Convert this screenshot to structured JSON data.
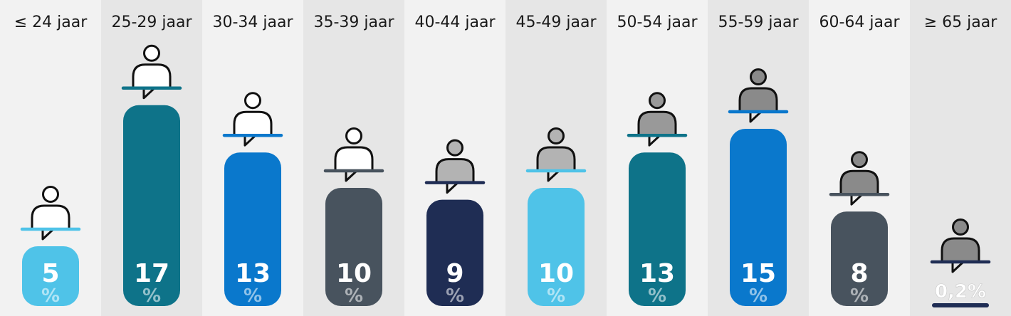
{
  "chart_data": {
    "type": "bar",
    "categories": [
      "≤ 24 jaar",
      "25-29 jaar",
      "30-34 jaar",
      "35-39 jaar",
      "40-44 jaar",
      "45-49 jaar",
      "50-54 jaar",
      "55-59 jaar",
      "60-64 jaar",
      "≥ 65 jaar"
    ],
    "values": [
      5,
      17,
      13,
      10,
      9,
      10,
      13,
      15,
      8,
      0.2
    ],
    "value_labels": [
      "5",
      "17",
      "13",
      "10",
      "9",
      "10",
      "13",
      "15",
      "8",
      "0,2"
    ],
    "unit": "%",
    "bar_colors": [
      "#4fc3e8",
      "#0e7389",
      "#0a78cc",
      "#48535e",
      "#1f2d54",
      "#4fc3e8",
      "#0e7389",
      "#0a78cc",
      "#48535e",
      "#1f2d54"
    ],
    "icon_fills": [
      "#ffffff",
      "#ffffff",
      "#ffffff",
      "#ffffff",
      "#b3b3b3",
      "#b3b3b3",
      "#999999",
      "#8a8a8a",
      "#8a8a8a",
      "#8a8a8a"
    ],
    "icon": "person-at-desk-icon",
    "column_backgrounds": [
      "#f2f2f2",
      "#e6e6e6"
    ]
  }
}
